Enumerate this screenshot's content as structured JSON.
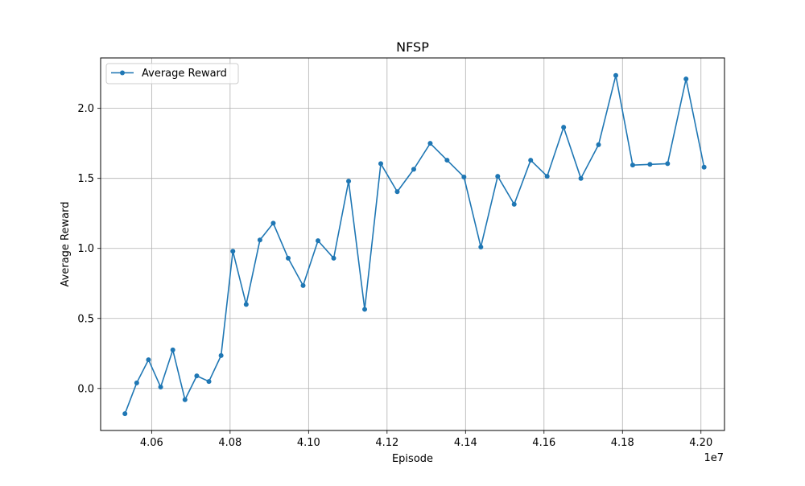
{
  "chart_data": {
    "type": "line",
    "title": "NFSP",
    "xlabel": "Episode",
    "ylabel": "Average Reward",
    "x_offset_label": "1e7",
    "xlim": [
      40470000,
      42060000
    ],
    "ylim": [
      -0.3,
      2.36
    ],
    "x_ticks": [
      40600000,
      40800000,
      41000000,
      41200000,
      41400000,
      41600000,
      41800000,
      42000000
    ],
    "x_tick_labels": [
      "4.06",
      "4.08",
      "4.10",
      "4.12",
      "4.14",
      "4.16",
      "4.18",
      "4.20"
    ],
    "y_ticks": [
      0.0,
      0.5,
      1.0,
      1.5,
      2.0
    ],
    "y_tick_labels": [
      "0.0",
      "0.5",
      "1.0",
      "1.5",
      "2.0"
    ],
    "grid": true,
    "legend_position": "upper-left",
    "series": [
      {
        "name": "Average Reward",
        "color": "#1f77b4",
        "x": [
          40532000,
          40562000,
          40592000,
          40623000,
          40654000,
          40685000,
          40715000,
          40746000,
          40777000,
          40807000,
          40841000,
          40876000,
          40910000,
          40948000,
          40986000,
          41024000,
          41064000,
          41102000,
          41143000,
          41184000,
          41226000,
          41268000,
          41310000,
          41353000,
          41396000,
          41439000,
          41482000,
          41524000,
          41566000,
          41608000,
          41650000,
          41694000,
          41739000,
          41783000,
          41826000,
          41870000,
          41915000,
          41962000,
          42008000
        ],
        "y": [
          -0.18,
          0.04,
          0.205,
          0.01,
          0.275,
          -0.08,
          0.09,
          0.05,
          0.235,
          0.98,
          0.6,
          1.06,
          1.18,
          0.93,
          0.735,
          1.055,
          0.93,
          1.48,
          0.565,
          1.605,
          1.405,
          1.565,
          1.75,
          1.63,
          1.51,
          1.01,
          1.515,
          1.315,
          1.63,
          1.515,
          1.865,
          1.5,
          1.74,
          2.235,
          1.595,
          1.6,
          1.605,
          2.21,
          1.58
        ]
      }
    ]
  }
}
